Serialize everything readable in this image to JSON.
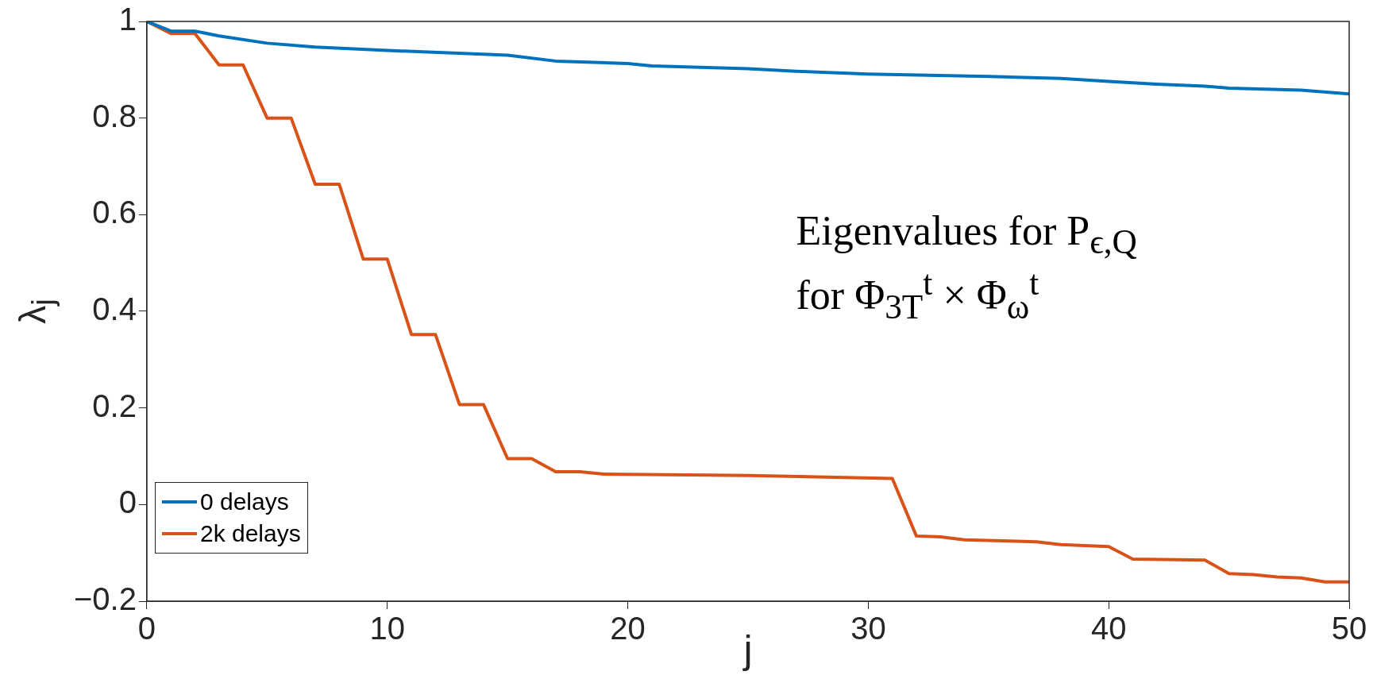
{
  "chart_data": {
    "type": "line",
    "xlabel": "j",
    "ylabel": "λ$_{j}$",
    "annotations": [
      "Eigenvalues for P$_{ϵ,Q}$",
      "for Φ$_{3T}$$^{t}$ × Φ$_{ω}$$^{t}$"
    ],
    "series": [
      {
        "name": "0 delays",
        "color": "#0072bd",
        "x": [
          0,
          1,
          2,
          3,
          5,
          7,
          10,
          15,
          17,
          20,
          21,
          25,
          27,
          30,
          35,
          38,
          40,
          42,
          44,
          45,
          48,
          50
        ],
        "values": [
          1.0,
          0.98,
          0.98,
          0.97,
          0.955,
          0.947,
          0.94,
          0.93,
          0.918,
          0.913,
          0.908,
          0.902,
          0.897,
          0.891,
          0.886,
          0.882,
          0.876,
          0.87,
          0.866,
          0.862,
          0.858,
          0.85
        ]
      },
      {
        "name": "2k delays",
        "color": "#d95319",
        "x": [
          0,
          1,
          2,
          3,
          4,
          5,
          6,
          7,
          8,
          9,
          10,
          11,
          12,
          13,
          14,
          15,
          16,
          17,
          18,
          19,
          25,
          31,
          32,
          33,
          34,
          37,
          38,
          40,
          41,
          44,
          45,
          46,
          47,
          48,
          49,
          50
        ],
        "values": [
          1.0,
          0.975,
          0.975,
          0.91,
          0.91,
          0.8,
          0.8,
          0.663,
          0.663,
          0.508,
          0.508,
          0.352,
          0.352,
          0.207,
          0.207,
          0.095,
          0.095,
          0.068,
          0.068,
          0.063,
          0.06,
          0.054,
          -0.065,
          -0.067,
          -0.073,
          -0.077,
          -0.083,
          -0.087,
          -0.113,
          -0.115,
          -0.143,
          -0.145,
          -0.15,
          -0.152,
          -0.16,
          -0.16
        ]
      }
    ],
    "xlim": [
      0,
      50
    ],
    "xticks": [
      0,
      10,
      20,
      30,
      40,
      50
    ],
    "ylim": [
      -0.2,
      1
    ],
    "yticks": [
      {
        "value": -0.2,
        "label": "−0.2"
      },
      0,
      0.2,
      0.4,
      0.6,
      0.8,
      1
    ],
    "grid": false,
    "legend": "bottom left",
    "line_style": "solid",
    "marker": "none"
  }
}
